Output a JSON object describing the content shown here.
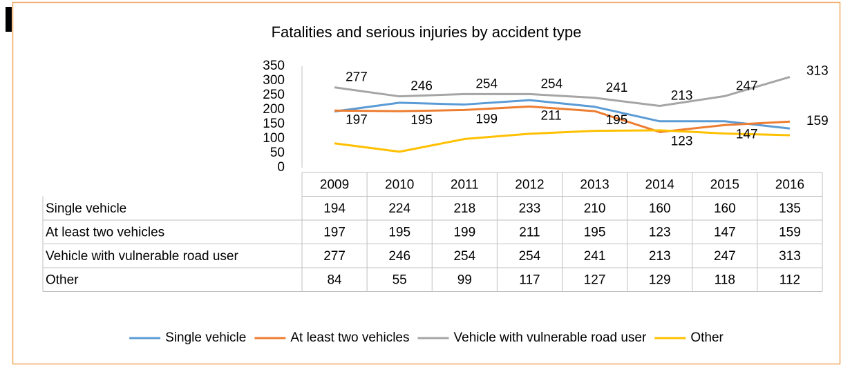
{
  "chart_data": {
    "type": "line",
    "title": "Fatalities and serious injuries by accident type",
    "categories": [
      "2009",
      "2010",
      "2011",
      "2012",
      "2013",
      "2014",
      "2015",
      "2016"
    ],
    "series": [
      {
        "name": "Single vehicle",
        "color": "#5b9bd5",
        "values": [
          194,
          224,
          218,
          233,
          210,
          160,
          160,
          135
        ]
      },
      {
        "name": "At least two vehicles",
        "color": "#ed7d31",
        "values": [
          197,
          195,
          199,
          211,
          195,
          123,
          147,
          159
        ],
        "data_labels": true
      },
      {
        "name": "Vehicle with vulnerable road user",
        "color": "#a5a5a5",
        "values": [
          277,
          246,
          254,
          254,
          241,
          213,
          247,
          313
        ],
        "data_labels": true
      },
      {
        "name": "Other",
        "color": "#ffc000",
        "values": [
          84,
          55,
          99,
          117,
          127,
          129,
          118,
          112
        ]
      }
    ],
    "ylim": [
      0,
      350
    ],
    "yticks": [
      0,
      50,
      100,
      150,
      200,
      250,
      300,
      350
    ],
    "data_table": true,
    "legend": "bottom"
  }
}
